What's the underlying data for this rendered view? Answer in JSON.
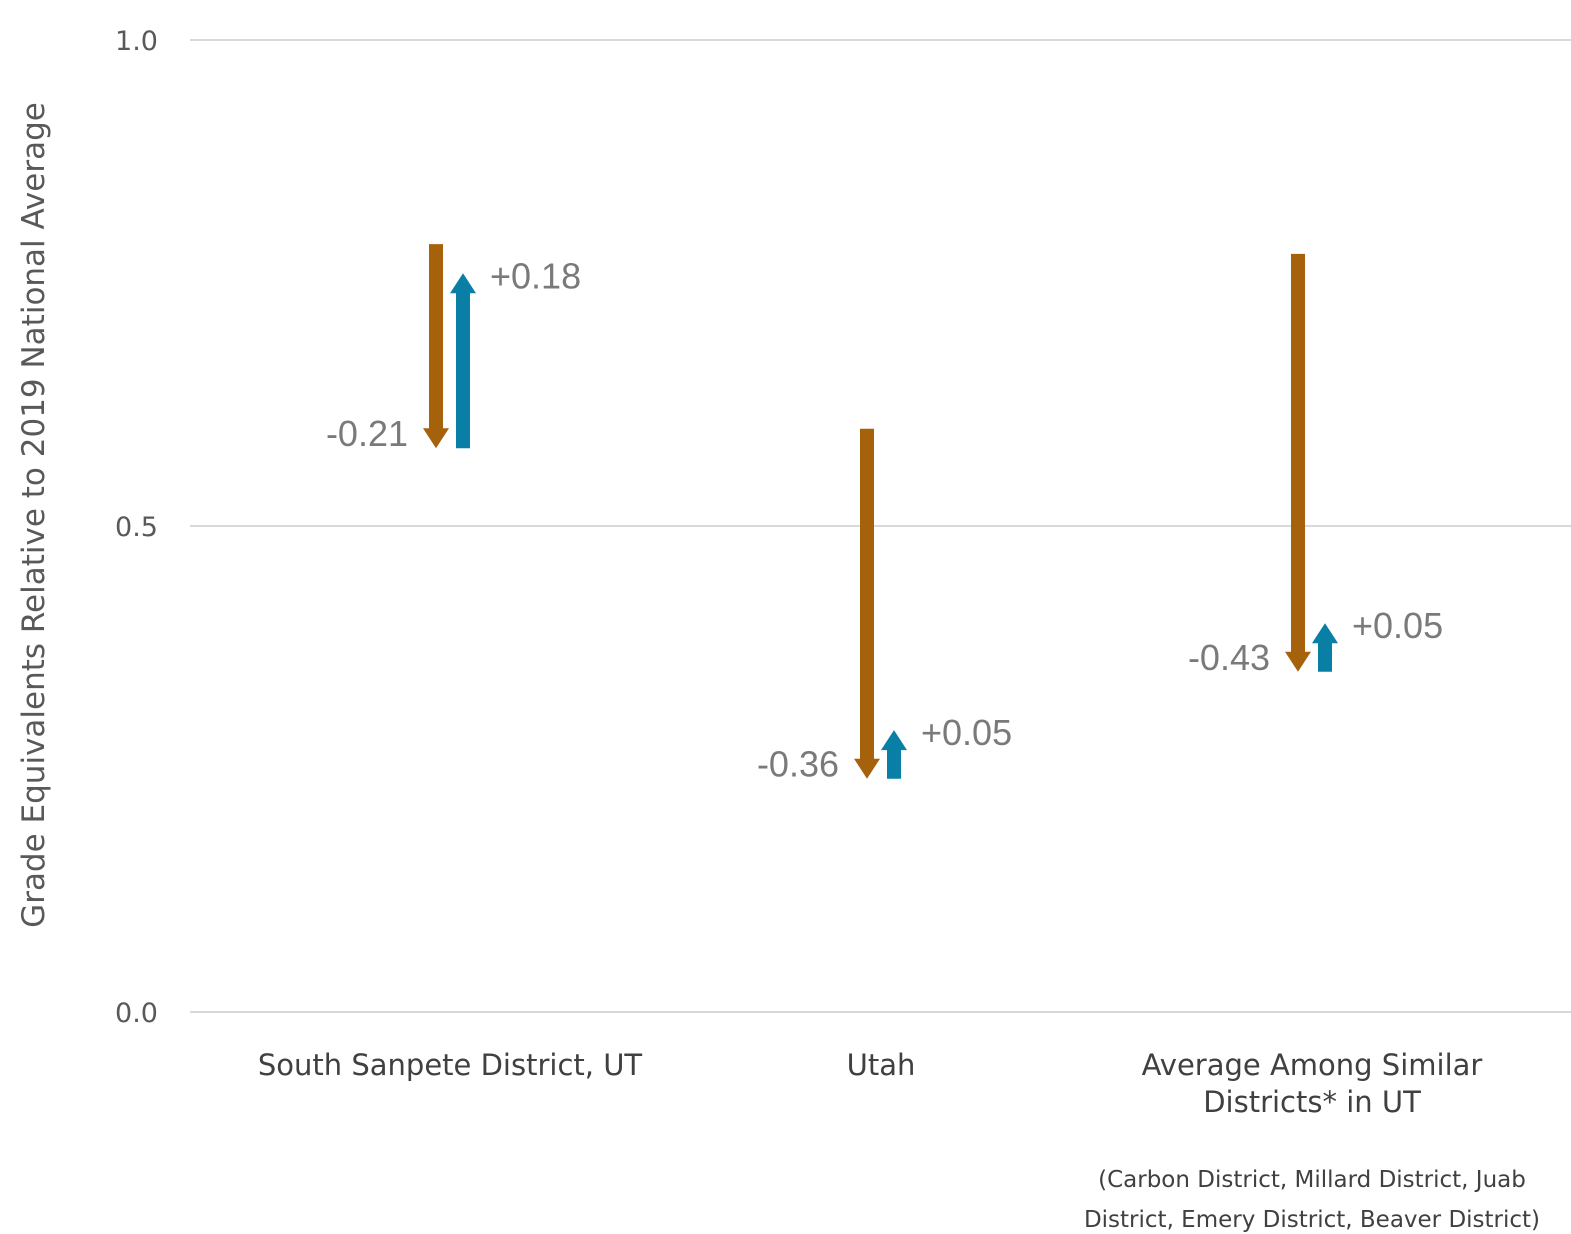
{
  "chart_data": {
    "type": "arrow",
    "ylabel": "Grade Equivalents Relative to 2019 National Average",
    "ylim": [
      0.0,
      1.0
    ],
    "yticks": [
      "0.0",
      "0.5",
      "1.0"
    ],
    "grid": true,
    "categories": [
      "South Sanpete District, UT",
      "Utah",
      "Average Among Similar Districts* in UT"
    ],
    "category_lines": [
      [
        "South Sanpete District, UT"
      ],
      [
        "Utah"
      ],
      [
        "Average Among Similar",
        "Districts* in UT"
      ]
    ],
    "series": [
      {
        "color": "#a6620a",
        "start": [
          0.79,
          0.6,
          0.78
        ],
        "end": [
          0.58,
          0.24,
          0.35
        ],
        "labels": [
          "-0.21",
          "-0.36",
          "-0.43"
        ]
      },
      {
        "color": "#0a7fa6",
        "start": [
          0.58,
          0.24,
          0.35
        ],
        "end": [
          0.76,
          0.29,
          0.4
        ],
        "labels": [
          "+0.18",
          "+0.05",
          "+0.05"
        ]
      }
    ],
    "footnote": [
      "(Carbon District, Millard District, Juab",
      "District, Emery District, Beaver District)"
    ]
  }
}
